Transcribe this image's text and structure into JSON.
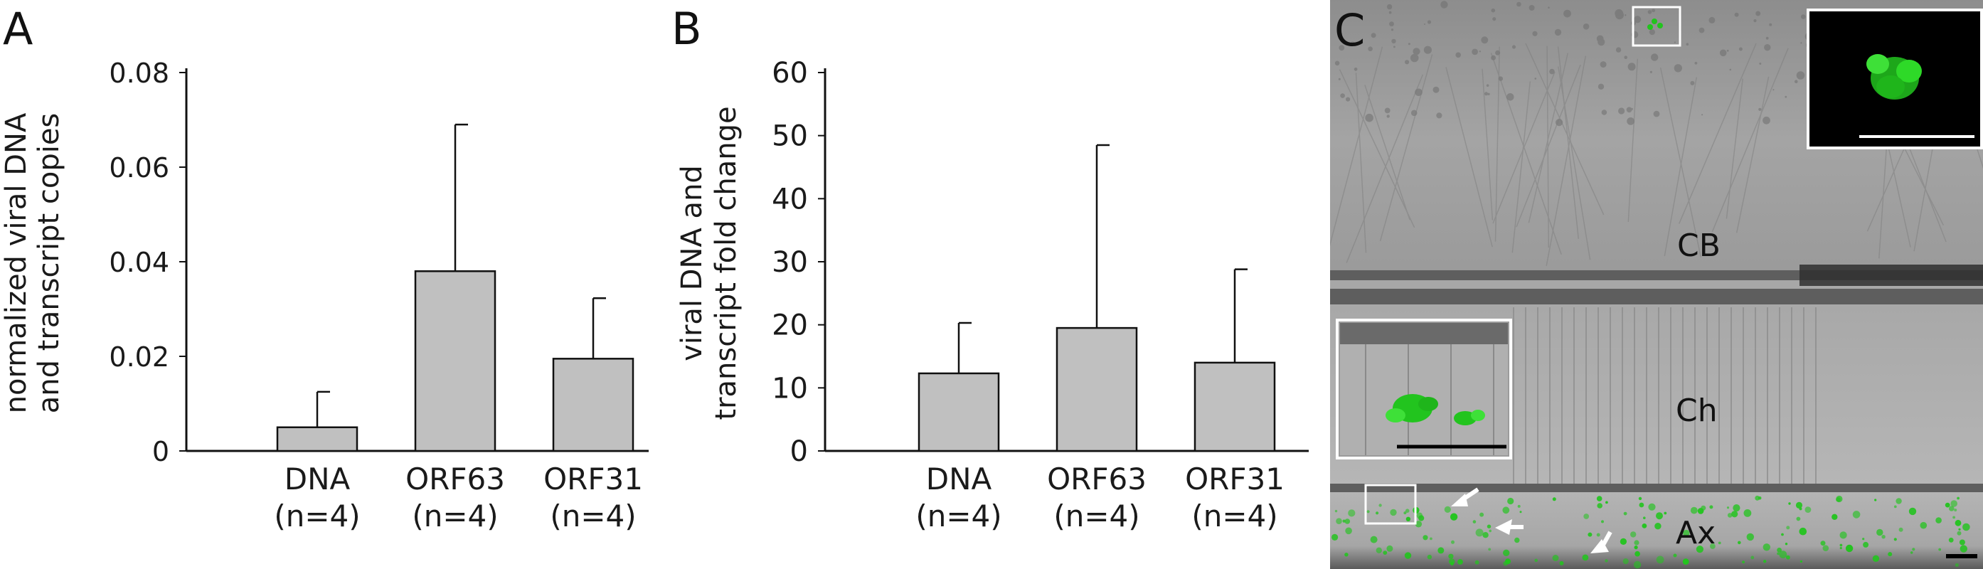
{
  "panels": {
    "a": "A",
    "b": "B",
    "c": "C"
  },
  "chart_data": [
    {
      "type": "bar",
      "panel": "A",
      "categories": [
        "DNA\n(n=4)",
        "ORF63\n(n=4)",
        "ORF31\n(n=4)"
      ],
      "category_names": [
        "DNA",
        "ORF63",
        "ORF31"
      ],
      "category_n": [
        "(n=4)",
        "(n=4)",
        "(n=4)"
      ],
      "values": [
        0.005,
        0.038,
        0.0195
      ],
      "errors": [
        0.0075,
        0.031,
        0.0128
      ],
      "ylabel_lines": [
        "normalized viral DNA",
        "and transcript copies"
      ],
      "ylim": [
        0,
        0.08
      ],
      "yticks": [
        0,
        0.02,
        0.04,
        0.06,
        0.08
      ],
      "ytick_labels": [
        "0",
        "0.02",
        "0.04",
        "0.06",
        "0.08"
      ],
      "bar_color": "#c0c0c0",
      "grid": false,
      "error_bars": "upper"
    },
    {
      "type": "bar",
      "panel": "B",
      "categories": [
        "DNA\n(n=4)",
        "ORF63\n(n=4)",
        "ORF31\n(n=4)"
      ],
      "category_names": [
        "DNA",
        "ORF63",
        "ORF31"
      ],
      "category_n": [
        "(n=4)",
        "(n=4)",
        "(n=4)"
      ],
      "values": [
        12.3,
        19.5,
        14.0
      ],
      "errors": [
        8.0,
        29.0,
        14.8
      ],
      "ylabel_lines": [
        "viral DNA and",
        "transcript fold change"
      ],
      "ylim": [
        0,
        60
      ],
      "yticks": [
        0,
        10,
        20,
        30,
        40,
        50,
        60
      ],
      "ytick_labels": [
        "0",
        "10",
        "20",
        "30",
        "40",
        "50",
        "60"
      ],
      "bar_color": "#c0c0c0",
      "grid": false,
      "error_bars": "upper"
    }
  ],
  "micrograph": {
    "region_labels": {
      "cb": "CB",
      "ch": "Ch",
      "ax": "Ax"
    },
    "fluorescence_color": "#22c41e",
    "scale_bar_colors": {
      "inset": "#ffffff",
      "main": "#000000"
    }
  }
}
